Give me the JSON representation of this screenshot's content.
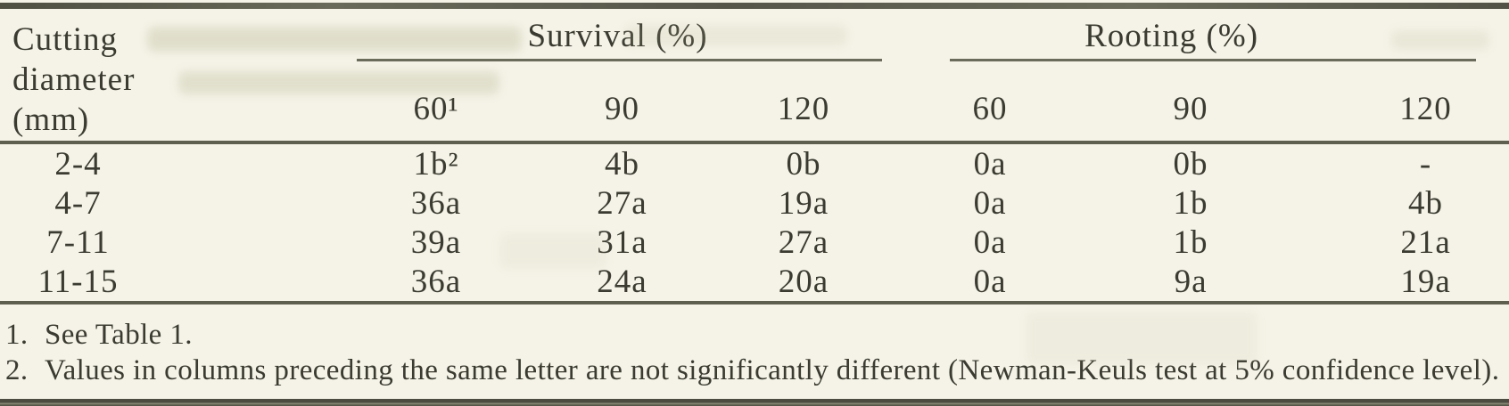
{
  "page": {
    "background": "#f5f3e7",
    "text_color": "#3b3b32",
    "rule_color": "#5f5f50"
  },
  "table": {
    "row_header": {
      "lines": [
        "Cutting",
        "diameter",
        "(mm)"
      ]
    },
    "groups": [
      {
        "label": "Survival (%)"
      },
      {
        "label": "Rooting (%)"
      }
    ],
    "subheaders": [
      "60¹",
      "90",
      "120",
      "60",
      "90",
      "120"
    ],
    "rows": [
      {
        "label": "2-4",
        "values": [
          "1b²",
          "4b",
          "0b",
          "0a",
          "0b",
          "-"
        ]
      },
      {
        "label": "4-7",
        "values": [
          "36a",
          "27a",
          "19a",
          "0a",
          "1b",
          "4b"
        ]
      },
      {
        "label": "7-11",
        "values": [
          "39a",
          "31a",
          "27a",
          "0a",
          "1b",
          "21a"
        ]
      },
      {
        "label": "11-15",
        "values": [
          "36a",
          "24a",
          "20a",
          "0a",
          "9a",
          "19a"
        ]
      }
    ]
  },
  "footnotes": [
    {
      "number": "1.",
      "text": "See Table 1."
    },
    {
      "number": "2.",
      "text": "Values in columns preceding the same letter are not significantly different (Newman-Keuls test at 5% confidence level)."
    }
  ]
}
